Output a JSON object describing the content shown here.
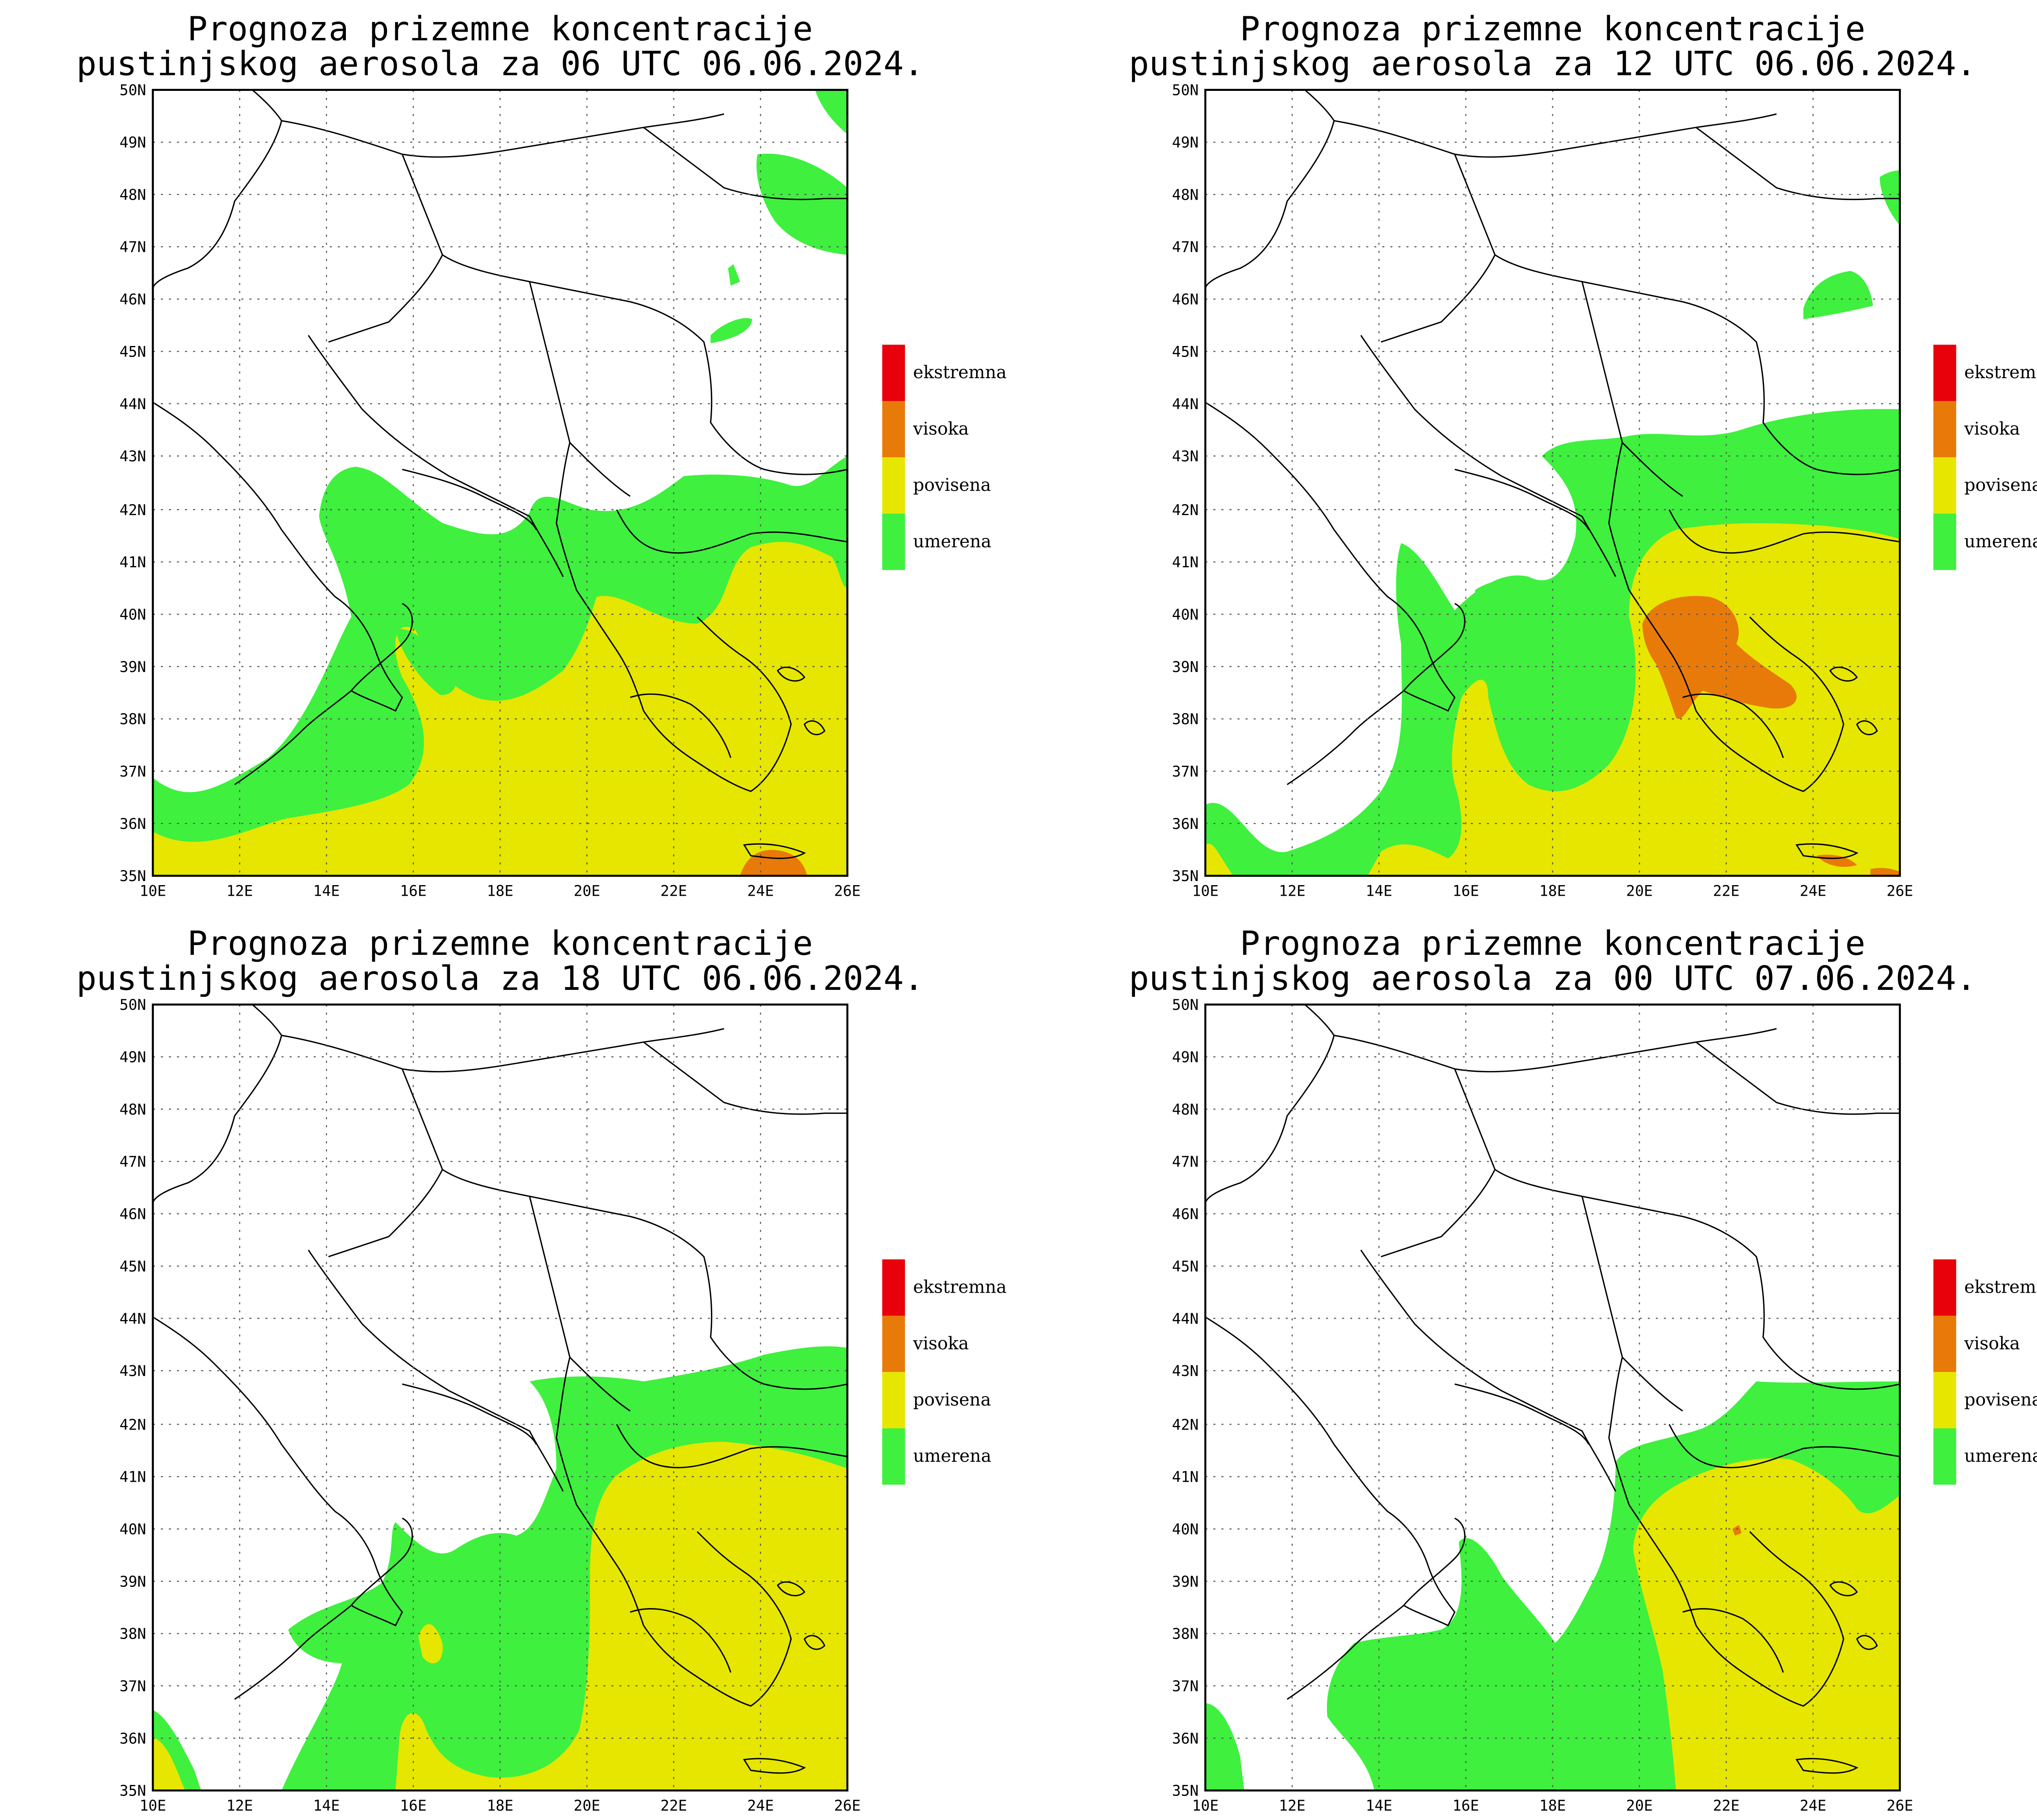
{
  "legend": [
    {
      "label": "ekstremna",
      "color": "#e8000b"
    },
    {
      "label": "visoka",
      "color": "#e87a0a"
    },
    {
      "label": "povisena",
      "color": "#e6e600"
    },
    {
      "label": "umerena",
      "color": "#3ff03f"
    }
  ],
  "panels": [
    {
      "title_line1": "Prognoza prizemne koncentracije",
      "title_line2": "pustinjskog aerosola za 06 UTC 06.06.2024.",
      "lon_ticks": [
        "10E",
        "12E",
        "14E",
        "16E",
        "18E",
        "20E",
        "22E",
        "24E",
        "26E"
      ],
      "lat_ticks": [
        "35N",
        "36N",
        "37N",
        "38N",
        "39N",
        "40N",
        "41N",
        "42N",
        "43N",
        "44N",
        "45N",
        "46N",
        "47N",
        "48N",
        "49N",
        "50N"
      ]
    },
    {
      "title_line1": "Prognoza prizemne koncentracije",
      "title_line2": "pustinjskog aerosola za 12 UTC 06.06.2024.",
      "lon_ticks": [
        "10E",
        "12E",
        "14E",
        "16E",
        "18E",
        "20E",
        "22E",
        "24E",
        "26E"
      ],
      "lat_ticks": [
        "35N",
        "36N",
        "37N",
        "38N",
        "39N",
        "40N",
        "41N",
        "42N",
        "43N",
        "44N",
        "45N",
        "46N",
        "47N",
        "48N",
        "49N",
        "50N"
      ]
    },
    {
      "title_line1": "Prognoza prizemne koncentracije",
      "title_line2": "pustinjskog aerosola za 18 UTC 06.06.2024.",
      "lon_ticks": [
        "10E",
        "12E",
        "14E",
        "16E",
        "18E",
        "20E",
        "22E",
        "24E",
        "26E"
      ],
      "lat_ticks": [
        "35N",
        "36N",
        "37N",
        "38N",
        "39N",
        "40N",
        "41N",
        "42N",
        "43N",
        "44N",
        "45N",
        "46N",
        "47N",
        "48N",
        "49N",
        "50N"
      ]
    },
    {
      "title_line1": "Prognoza prizemne koncentracije",
      "title_line2": "pustinjskog aerosola za 00 UTC 07.06.2024.",
      "lon_ticks": [
        "10E",
        "12E",
        "14E",
        "16E",
        "18E",
        "20E",
        "22E",
        "24E",
        "26E"
      ],
      "lat_ticks": [
        "35N",
        "36N",
        "37N",
        "38N",
        "39N",
        "40N",
        "41N",
        "42N",
        "43N",
        "44N",
        "45N",
        "46N",
        "47N",
        "48N",
        "49N",
        "50N"
      ]
    }
  ]
}
